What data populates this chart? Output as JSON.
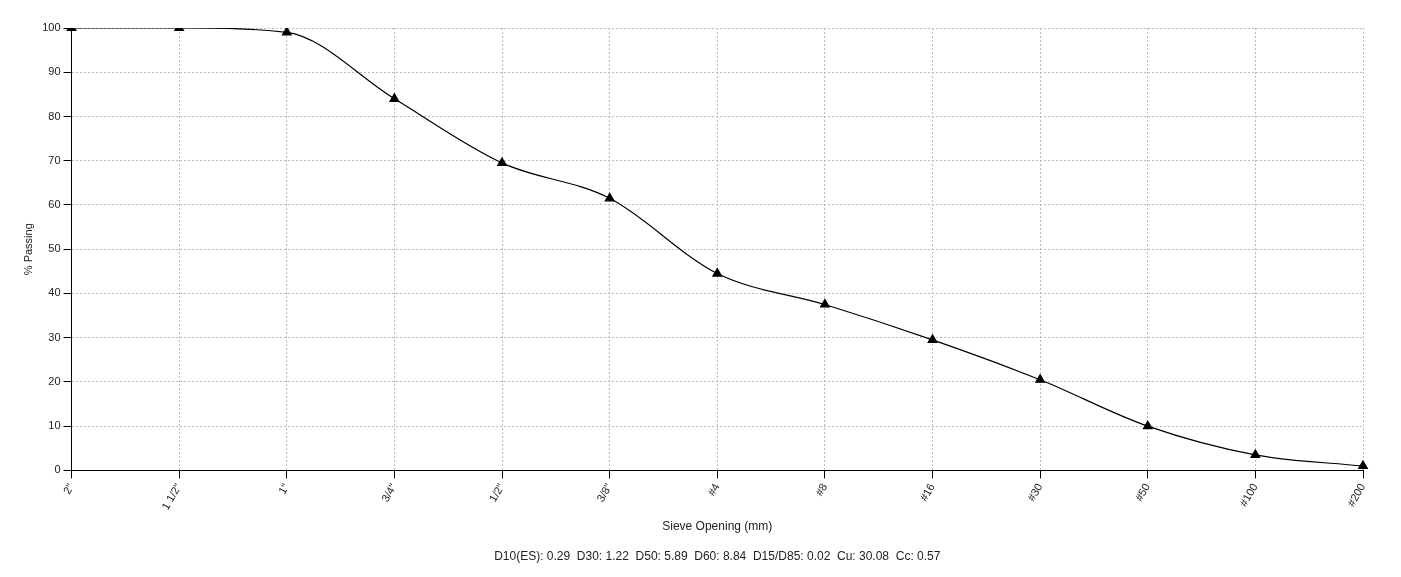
{
  "chart_data": {
    "type": "line",
    "xlabel": "Sieve Opening (mm)",
    "ylabel": "% Passing",
    "annotations": [
      "D10(ES): 0.29  D30: 1.22  D50: 5.89  D60: 8.84  D15/D85: 0.02  Cu: 30.08  Cc: 0.57"
    ],
    "categories": [
      "2\"",
      "1 1/2\"",
      "1\"",
      "3/4\"",
      "1/2\"",
      "3/8\"",
      "#4",
      "#8",
      "#16",
      "#30",
      "#50",
      "#100",
      "#200"
    ],
    "series": [
      {
        "color": "#000000",
        "values": [
          100,
          100,
          99,
          84,
          69.5,
          61.5,
          44.5,
          37.5,
          29.5,
          20.5,
          10,
          3.5,
          1
        ]
      }
    ],
    "ylim": [
      0,
      100
    ],
    "yticks": [
      0,
      10,
      20,
      30,
      40,
      50,
      60,
      70,
      80,
      90,
      100
    ],
    "grid": true,
    "marker": "triangle",
    "line_style": "solid"
  }
}
